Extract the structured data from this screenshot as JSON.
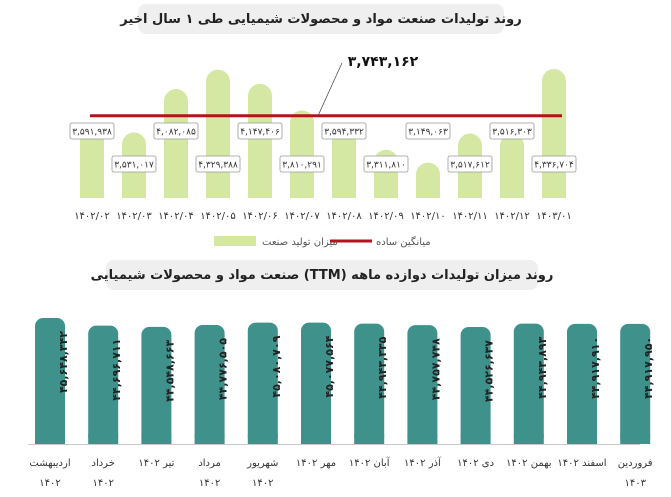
{
  "chart_data": [
    {
      "type": "bar",
      "title": "روند تولیدات صنعت مواد و محصولات شیمیایی طی ۱ سال اخیر",
      "categories": [
        "۱۴۰۲/۰۲",
        "۱۴۰۲/۰۳",
        "۱۴۰۲/۰۴",
        "۱۴۰۲/۰۵",
        "۱۴۰۲/۰۶",
        "۱۴۰۲/۰۷",
        "۱۴۰۲/۰۸",
        "۱۴۰۲/۰۹",
        "۱۴۰۲/۱۰",
        "۱۴۰۲/۱۱",
        "۱۴۰۲/۱۲",
        "۱۴۰۳/۰۱"
      ],
      "series": [
        {
          "name": "میزان تولید صنعت",
          "values": [
            3591938,
            3531017,
            4082085,
            4329388,
            4147406,
            3810291,
            3594332,
            3311810,
            3149063,
            3517612,
            3516303,
            4336704
          ],
          "labels": [
            "۳,۵۹۱,۹۳۸",
            "۳,۵۳۱,۰۱۷",
            "۴,۰۸۲,۰۸۵",
            "۴,۳۲۹,۳۸۸",
            "۴,۱۴۷,۴۰۶",
            "۳,۸۱۰,۲۹۱",
            "۳,۵۹۴,۳۳۲",
            "۳,۳۱۱,۸۱۰",
            "۳,۱۴۹,۰۶۳",
            "۳,۵۱۷,۶۱۲",
            "۳,۵۱۶,۳۰۳",
            "۴,۳۳۶,۷۰۴"
          ]
        }
      ],
      "average": {
        "name": "میانگین ساده",
        "value": 3743162,
        "label": "۳,۷۴۳,۱۶۲"
      },
      "colors": {
        "bar": "#d4e8a4",
        "average": "#b5121b"
      }
    },
    {
      "type": "bar",
      "title": "روند میزان تولیدات دوازده ماهه (TTM) صنعت مواد و محصولات شیمیایی",
      "categories": [
        "اردیبهشت ۱۴۰۲",
        "خرداد ۱۴۰۲",
        "تیر ۱۴۰۲",
        "مرداد ۱۴۰۲",
        "شهریور ۱۴۰۲",
        "مهر ۱۴۰۲",
        "آبان ۱۴۰۲",
        "آذر ۱۴۰۲",
        "دی ۱۴۰۲",
        "بهمن ۱۴۰۲",
        "اسفند ۱۴۰۲",
        "فروردین ۱۴۰۳"
      ],
      "category_lines": [
        [
          "اردیبهشت",
          "۱۴۰۲"
        ],
        [
          "خرداد",
          "۱۴۰۲"
        ],
        [
          "تیر ۱۴۰۲"
        ],
        [
          "مرداد",
          "۱۴۰۲"
        ],
        [
          "شهریور",
          "۱۴۰۲"
        ],
        [
          "مهر ۱۴۰۲"
        ],
        [
          "آبان ۱۴۰۲"
        ],
        [
          "آذر ۱۴۰۲"
        ],
        [
          "دی ۱۴۰۲"
        ],
        [
          "بهمن ۱۴۰۲"
        ],
        [
          "اسفند ۱۴۰۲"
        ],
        [
          "فروردین",
          "۱۴۰۳"
        ]
      ],
      "series": [
        {
          "values": [
            45648342,
            44696711,
            44548663,
            44776505,
            45080709,
            45077564,
            44943335,
            44757748,
            44526637,
            44943893,
            44917910,
            44917950
          ],
          "labels": [
            "۴۵,۶۴۸,۳۴۲",
            "۴۴,۶۹۶,۷۱۱",
            "۴۴,۵۴۸,۶۶۳",
            "۴۴,۷۷۶,۵۰۵",
            "۴۵,۰۸۰,۷۰۹",
            "۴۵,۰۷۷,۵۶۴",
            "۴۴,۹۴۳,۳۳۵",
            "۴۴,۷۵۷,۷۴۸",
            "۴۴,۵۲۶,۶۳۷",
            "۴۴,۹۴۳,۸۹۳",
            "۴۴,۹۱۷,۹۱۰",
            "۴۴,۹۱۷,۹۵۰"
          ]
        }
      ],
      "colors": {
        "bar": "#3f918b"
      }
    }
  ]
}
